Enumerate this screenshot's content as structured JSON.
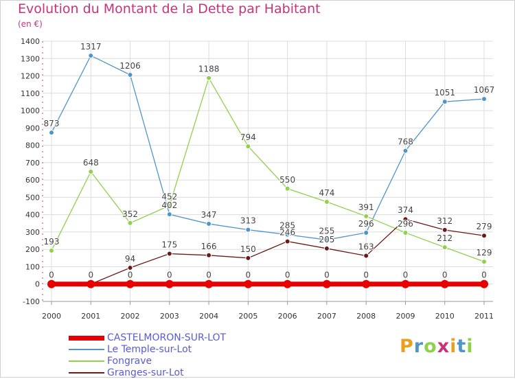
{
  "title": "Evolution du Montant de la Dette par Habitant",
  "unit_label": "(en €)",
  "brand": "Proxiti",
  "chart_data": {
    "type": "line",
    "title": "Evolution du Montant de la Dette par Habitant",
    "ylabel": "(en €)",
    "x": [
      "2000",
      "2001",
      "2002",
      "2003",
      "2004",
      "2005",
      "2006",
      "2007",
      "2008",
      "2009",
      "2010",
      "2011"
    ],
    "ylim": [
      -100,
      1400
    ],
    "yticks": [
      -100,
      0,
      100,
      200,
      300,
      400,
      500,
      600,
      700,
      800,
      900,
      1000,
      1100,
      1200,
      1300,
      1400
    ],
    "grid": true,
    "legend_position": "bottom",
    "series": [
      {
        "name": "CASTELMORON-SUR-LOT",
        "color": "#e60000",
        "values": [
          0,
          0,
          0,
          0,
          0,
          0,
          0,
          0,
          0,
          0,
          0,
          0
        ]
      },
      {
        "name": "Le Temple-sur-Lot",
        "color": "#4f95c8",
        "values": [
          873,
          1317,
          1206,
          402,
          347,
          313,
          285,
          255,
          296,
          768,
          1051,
          1067
        ]
      },
      {
        "name": "Fongrave",
        "color": "#8fd14a",
        "values": [
          193,
          648,
          352,
          452,
          1188,
          794,
          550,
          474,
          391,
          296,
          212,
          129
        ]
      },
      {
        "name": "Granges-sur-Lot",
        "color": "#6b1a1a",
        "values": [
          0,
          0,
          94,
          175,
          166,
          150,
          246,
          205,
          163,
          374,
          312,
          279
        ]
      }
    ]
  }
}
